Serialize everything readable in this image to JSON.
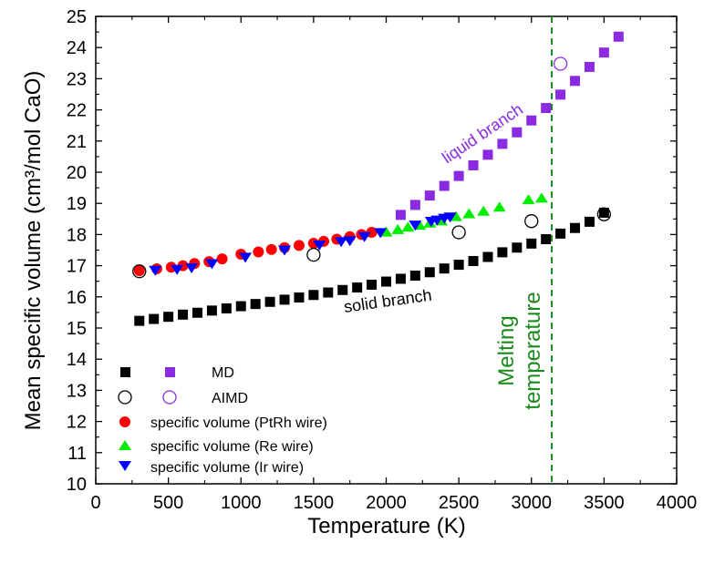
{
  "colors": {
    "md_solid": "#000000",
    "md_liquid": "#8a2be2",
    "ptrh": "#ff0000",
    "re": "#00ee00",
    "ir": "#0000ff",
    "melting": "#1a8a1a"
  },
  "chart_data": {
    "type": "scatter",
    "xlabel": "Temperature (K)",
    "ylabel": "Mean specific volume (cm³/mol CaO)",
    "xlim": [
      0,
      4000
    ],
    "ylim": [
      10,
      25
    ],
    "xticks": [
      "0",
      "500",
      "1000",
      "1500",
      "2000",
      "2500",
      "3000",
      "3500",
      "4000"
    ],
    "yticks": [
      "10",
      "11",
      "12",
      "13",
      "14",
      "15",
      "16",
      "17",
      "18",
      "19",
      "20",
      "21",
      "22",
      "23",
      "24",
      "25"
    ],
    "grid": false,
    "legend_position": "bottom-left",
    "legend": {
      "md": "MD",
      "aimd": "AIMD",
      "ptrh": "specific volume (PtRh wire)",
      "re": "specific volume (Re wire)",
      "ir": "specific volume (Ir wire)"
    },
    "annotations": {
      "liquid": "liquid branch",
      "solid": "solid branch",
      "melting_line1": "Melting",
      "melting_line2": "temperature"
    },
    "melting_temperature": 3140,
    "series": [
      {
        "key": "md_solid",
        "marker": "square",
        "x": [
          300,
          400,
          500,
          600,
          700,
          800,
          900,
          1000,
          1100,
          1200,
          1300,
          1400,
          1500,
          1600,
          1700,
          1800,
          1900,
          2000,
          2100,
          2200,
          2300,
          2400,
          2500,
          2600,
          2700,
          2800,
          2900,
          3000,
          3100,
          3200,
          3300,
          3400,
          3500
        ],
        "y": [
          15.23,
          15.29,
          15.36,
          15.43,
          15.49,
          15.56,
          15.63,
          15.7,
          15.77,
          15.84,
          15.91,
          15.98,
          16.06,
          16.14,
          16.22,
          16.3,
          16.39,
          16.49,
          16.58,
          16.68,
          16.79,
          16.91,
          17.03,
          17.15,
          17.28,
          17.43,
          17.58,
          17.71,
          17.85,
          18.03,
          18.21,
          18.41,
          18.7
        ]
      },
      {
        "key": "md_liquid",
        "marker": "square",
        "x": [
          2100,
          2200,
          2300,
          2400,
          2500,
          2600,
          2700,
          2800,
          2900,
          3000,
          3100,
          3200,
          3300,
          3400,
          3500,
          3600
        ],
        "y": [
          18.63,
          18.95,
          19.25,
          19.56,
          19.88,
          20.22,
          20.56,
          20.91,
          21.28,
          21.66,
          22.06,
          22.49,
          22.93,
          23.38,
          23.84,
          24.35
        ]
      },
      {
        "key": "aimd_solid",
        "marker": "open-circle",
        "x": [
          300,
          1500,
          2500,
          3000,
          3500
        ],
        "y": [
          16.82,
          17.35,
          18.07,
          18.43,
          18.65
        ]
      },
      {
        "key": "aimd_liquid",
        "marker": "open-circle",
        "x": [
          3200
        ],
        "y": [
          23.48
        ]
      },
      {
        "key": "ptrh",
        "marker": "circle",
        "x": [
          300,
          420,
          520,
          600,
          680,
          780,
          870,
          1000,
          1120,
          1210,
          1300,
          1400,
          1500,
          1570,
          1660,
          1750,
          1830,
          1900
        ],
        "y": [
          16.84,
          16.9,
          16.95,
          17.0,
          17.07,
          17.13,
          17.22,
          17.37,
          17.44,
          17.52,
          17.58,
          17.65,
          17.72,
          17.78,
          17.85,
          17.93,
          18.0,
          18.07
        ]
      },
      {
        "key": "re",
        "marker": "triangle-up",
        "x": [
          2000,
          2080,
          2150,
          2230,
          2300,
          2380,
          2480,
          2570,
          2670,
          2780,
          2980,
          3070
        ],
        "y": [
          18.08,
          18.16,
          18.24,
          18.3,
          18.37,
          18.44,
          18.58,
          18.67,
          18.75,
          18.88,
          19.12,
          19.17
        ]
      },
      {
        "key": "ir",
        "marker": "triangle-down",
        "x": [
          410,
          560,
          660,
          800,
          1030,
          1300,
          1540,
          1690,
          1750,
          1850,
          1960,
          2200,
          2310,
          2350,
          2400,
          2440
        ],
        "y": [
          16.85,
          16.88,
          16.93,
          17.06,
          17.27,
          17.5,
          17.66,
          17.77,
          17.8,
          17.93,
          18.06,
          18.3,
          18.42,
          18.46,
          18.52,
          18.56
        ]
      }
    ]
  }
}
